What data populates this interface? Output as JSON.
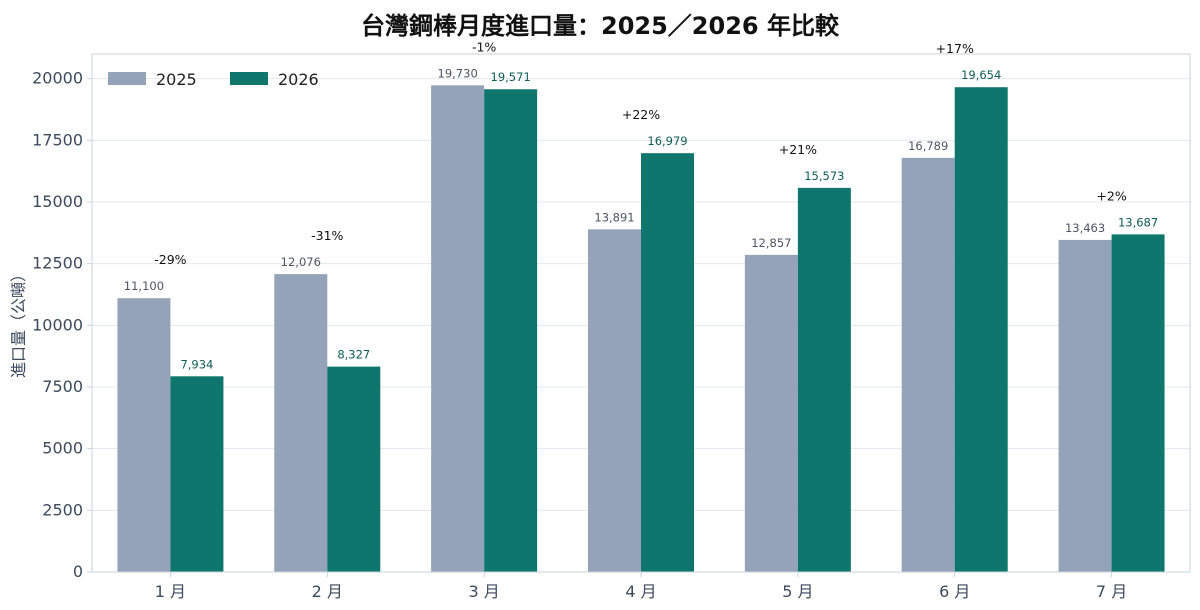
{
  "chart_data": {
    "type": "bar",
    "title": "台灣鋼棒月度進口量：2025／2026 年比較",
    "xlabel": "",
    "ylabel": "進口量（公噸）",
    "categories": [
      "1 月",
      "2 月",
      "3 月",
      "4 月",
      "5 月",
      "6 月",
      "7 月"
    ],
    "series": [
      {
        "name": "2025",
        "values": [
          11100,
          12076,
          19730,
          13891,
          12857,
          16789,
          13463
        ],
        "labels": [
          "11,100",
          "12,076",
          "19,730",
          "13,891",
          "12,857",
          "16,789",
          "13,463"
        ],
        "color": "#94a3b8",
        "label_color": "#4b5563"
      },
      {
        "name": "2026",
        "values": [
          7934,
          8327,
          19571,
          16979,
          15573,
          19654,
          13687
        ],
        "labels": [
          "7,934",
          "8,327",
          "19,571",
          "16,979",
          "15,573",
          "19,654",
          "13,687"
        ],
        "color": "#0f766e",
        "label_color": "#0f5c55"
      }
    ],
    "changes": [
      "-29%",
      "-31%",
      "-1%",
      "+22%",
      "+21%",
      "+17%",
      "+2%"
    ],
    "ylim": [
      0,
      21000
    ],
    "yticks": [
      0,
      2500,
      5000,
      7500,
      10000,
      12500,
      15000,
      17500,
      20000
    ],
    "ytick_labels": [
      "0",
      "2500",
      "5000",
      "7500",
      "10000",
      "12500",
      "15000",
      "17500",
      "20000"
    ],
    "grid": "horizontal",
    "legend_position": "top-left",
    "axis_color": "#c9d3de",
    "grid_color": "#e3e8ef"
  }
}
